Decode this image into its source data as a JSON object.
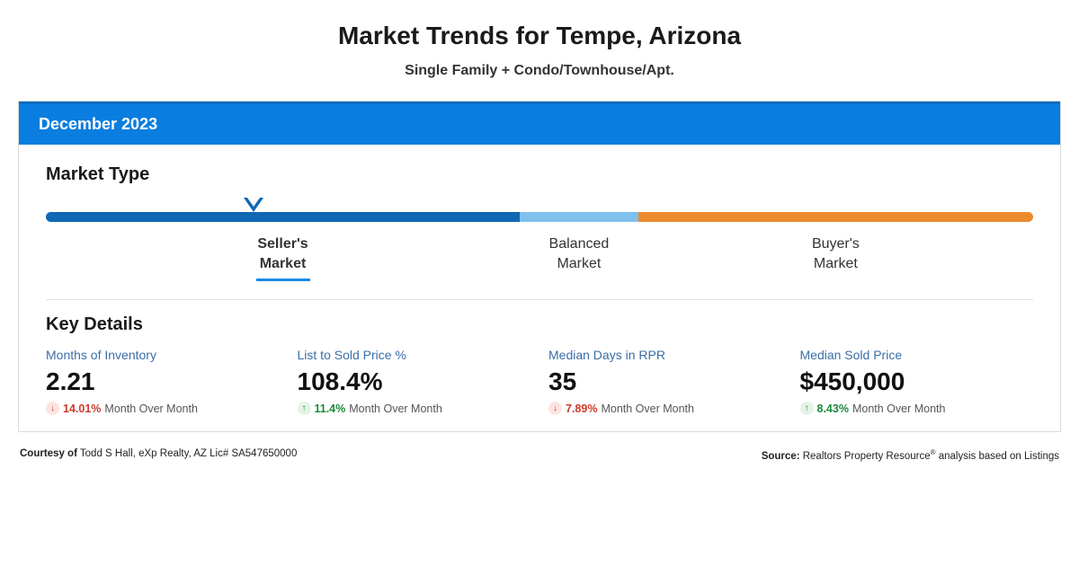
{
  "title": "Market Trends for Tempe, Arizona",
  "subtitle": "Single Family + Condo/Townhouse/Apt.",
  "period_label": "December 2023",
  "market_type": {
    "section_title": "Market Type",
    "pointer_percent": 21,
    "segments": [
      {
        "color": "#1067b3",
        "width_pct": 48
      },
      {
        "color": "#7fc0ec",
        "width_pct": 12
      },
      {
        "color": "#ec8a2e",
        "width_pct": 40
      }
    ],
    "labels": [
      {
        "line1": "Seller's",
        "line2": "Market",
        "width_pct": 48,
        "active": true
      },
      {
        "line1": "Balanced",
        "line2": "Market",
        "width_pct": 12,
        "active": false
      },
      {
        "line1": "Buyer's",
        "line2": "Market",
        "width_pct": 40,
        "active": false
      }
    ]
  },
  "key_details": {
    "section_title": "Key Details",
    "period_note": "Month Over Month",
    "items": [
      {
        "label": "Months of Inventory",
        "value": "2.21",
        "change_pct": "14.01%",
        "direction": "down"
      },
      {
        "label": "List to Sold Price %",
        "value": "108.4%",
        "change_pct": "11.4%",
        "direction": "up"
      },
      {
        "label": "Median Days in RPR",
        "value": "35",
        "change_pct": "7.89%",
        "direction": "down"
      },
      {
        "label": "Median Sold Price",
        "value": "$450,000",
        "change_pct": "8.43%",
        "direction": "up"
      }
    ]
  },
  "footer": {
    "courtesy_prefix": "Courtesy of",
    "courtesy_name": "Todd S Hall, eXp Realty, AZ Lic# SA547650000",
    "source_prefix": "Source:",
    "source_text_a": "Realtors Property Resource",
    "source_text_b": " analysis based on Listings"
  },
  "colors": {
    "header_bg": "#0a7de0",
    "header_border": "#086bbd",
    "accent": "#1a8ae5"
  }
}
